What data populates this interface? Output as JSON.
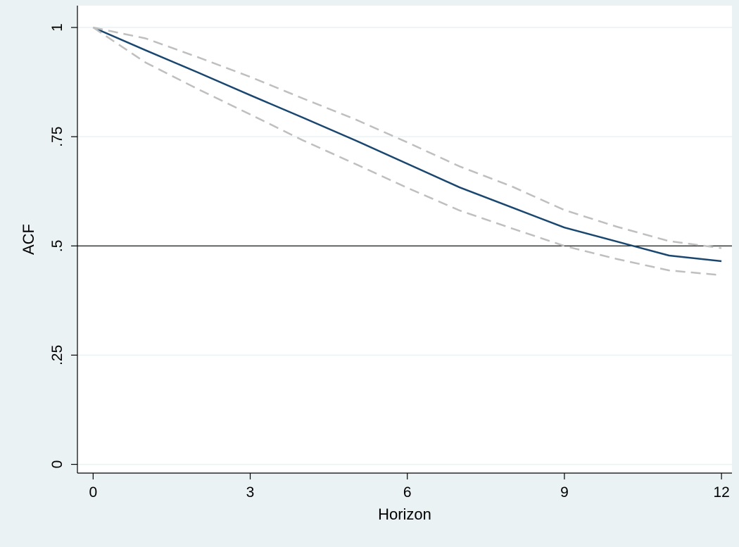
{
  "colors": {
    "background": "#eaf2f3",
    "plot_background": "#ffffff",
    "grid": "#eaf2f3",
    "axis": "#000000",
    "main_line": "#1a476f",
    "ci_line": "#bfbfbf",
    "reference_line": "#000000"
  },
  "chart_data": {
    "type": "line",
    "title": "",
    "xlabel": "Horizon",
    "ylabel": "ACF",
    "xlim": [
      -0.3,
      12.2
    ],
    "ylim": [
      -0.02,
      1.05
    ],
    "x_ticks": [
      0,
      3,
      6,
      9,
      12
    ],
    "x_tick_labels": [
      "0",
      "3",
      "6",
      "9",
      "12"
    ],
    "y_ticks": [
      0,
      0.25,
      0.5,
      0.75,
      1
    ],
    "y_tick_labels": [
      "0",
      ".25",
      ".5",
      ".75",
      "1"
    ],
    "grid": true,
    "legend": "none",
    "reference_line": {
      "axis": "y",
      "value": 0.5
    },
    "x": [
      0,
      1,
      2,
      3,
      4,
      5,
      6,
      7,
      8,
      9,
      10,
      11,
      12
    ],
    "series": [
      {
        "style": "solid",
        "values": [
          1.0,
          0.948,
          0.897,
          0.845,
          0.794,
          0.742,
          0.688,
          0.634,
          0.588,
          0.542,
          0.51,
          0.478,
          0.465
        ]
      },
      {
        "style": "dashed",
        "values": [
          1.0,
          0.975,
          0.932,
          0.887,
          0.838,
          0.79,
          0.737,
          0.682,
          0.636,
          0.582,
          0.544,
          0.511,
          0.495
        ]
      },
      {
        "style": "dashed",
        "values": [
          1.0,
          0.92,
          0.859,
          0.801,
          0.742,
          0.688,
          0.633,
          0.581,
          0.54,
          0.5,
          0.47,
          0.444,
          0.433
        ]
      }
    ]
  }
}
